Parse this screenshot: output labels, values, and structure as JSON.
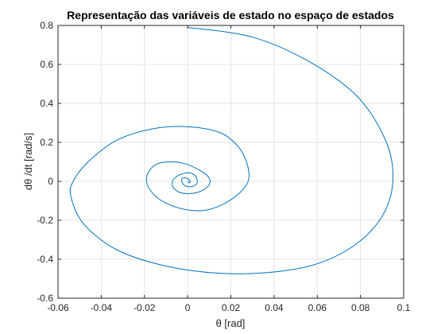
{
  "chart_data": {
    "type": "line",
    "title": "Representação das variáveis de estado no espaço de estados",
    "xlabel": "θ   [rad]",
    "ylabel": "dθ /dt    [rad/s]",
    "xlim": [
      -0.06,
      0.1
    ],
    "ylim": [
      -0.6,
      0.8
    ],
    "xticks": [
      -0.06,
      -0.04,
      -0.02,
      0,
      0.02,
      0.04,
      0.06,
      0.08,
      0.1
    ],
    "xtick_labels": [
      "-0.06",
      "-0.04",
      "-0.02",
      "0",
      "0.02",
      "0.04",
      "0.06",
      "0.08",
      "0.1"
    ],
    "yticks": [
      -0.6,
      -0.4,
      -0.2,
      0,
      0.2,
      0.4,
      0.6,
      0.8
    ],
    "ytick_labels": [
      "-0.6",
      "-0.4",
      "-0.2",
      "0",
      "0.2",
      "0.4",
      "0.6",
      "0.8"
    ],
    "grid": true,
    "legend": "none",
    "series": [
      {
        "line_color": "#0072bd",
        "x": [
          0.0,
          0.03,
          0.057,
          0.079,
          0.092,
          0.095,
          0.09,
          0.077,
          0.058,
          0.035,
          0.012,
          -0.012,
          -0.033,
          -0.048,
          -0.054,
          -0.053,
          -0.046,
          -0.033,
          -0.016,
          0.0,
          0.015,
          0.024,
          0.028,
          0.028,
          0.024,
          0.016,
          0.007,
          -0.003,
          -0.012,
          -0.017,
          -0.019,
          -0.018,
          -0.014,
          -0.008,
          -0.001,
          0.005,
          0.009,
          0.0104,
          0.009,
          0.005,
          0.0,
          -0.004,
          -0.0067,
          -0.007,
          -0.005,
          -0.002,
          0.001,
          0.0035,
          0.0045,
          0.0035,
          0.001,
          -0.0015,
          -0.0028,
          -0.0025,
          -0.001,
          0.0005,
          0.0012,
          0.0008,
          0.0
        ],
        "y": [
          0.79,
          0.74,
          0.61,
          0.43,
          0.2,
          0.0,
          -0.18,
          -0.33,
          -0.43,
          -0.47,
          -0.47,
          -0.43,
          -0.35,
          -0.22,
          -0.08,
          0.0,
          0.1,
          0.21,
          0.27,
          0.28,
          0.25,
          0.17,
          0.07,
          0.0,
          -0.06,
          -0.12,
          -0.15,
          -0.14,
          -0.1,
          -0.05,
          0.0,
          0.05,
          0.09,
          0.1,
          0.09,
          0.06,
          0.03,
          0.0,
          -0.03,
          -0.055,
          -0.063,
          -0.055,
          -0.03,
          0.0,
          0.025,
          0.04,
          0.043,
          0.03,
          0.0,
          -0.02,
          -0.028,
          -0.02,
          0.0,
          0.015,
          0.018,
          0.01,
          0.0,
          -0.008,
          0.0
        ]
      }
    ]
  }
}
